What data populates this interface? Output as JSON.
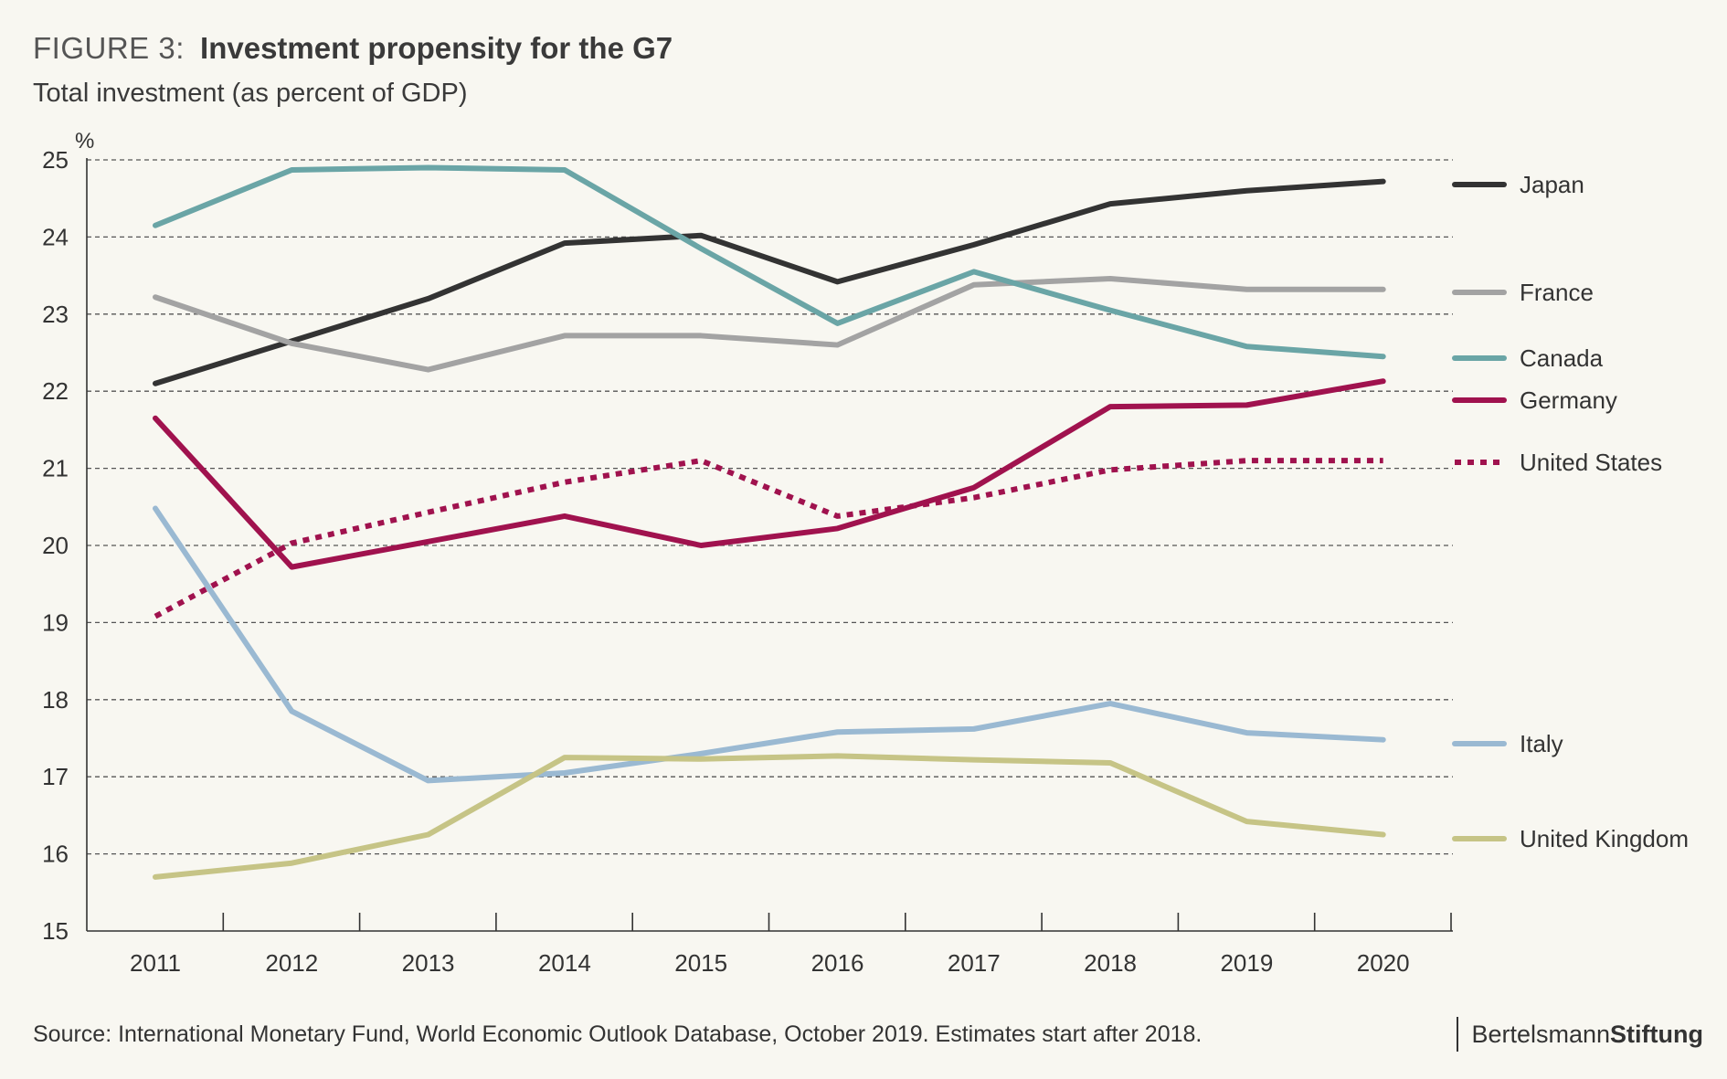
{
  "figure": {
    "label": "FIGURE 3:",
    "title": "Investment propensity for the G7",
    "subtitle": "Total investment (as percent of GDP)"
  },
  "footer": {
    "source": "Source: International Monetary Fund, World Economic Outlook Database, October 2019. Estimates start after 2018."
  },
  "brand": {
    "part1": "Bertelsmann",
    "part2": "Stiftung"
  },
  "chart_data": {
    "type": "line",
    "title": "Investment propensity for the G7",
    "subtitle": "Total investment (as percent of GDP)",
    "ylabel": "%",
    "xlabel": "",
    "ylim": [
      15,
      25
    ],
    "yticks": [
      15,
      16,
      17,
      18,
      19,
      20,
      21,
      22,
      23,
      24,
      25
    ],
    "categories": [
      "2011",
      "2012",
      "2013",
      "2014",
      "2015",
      "2016",
      "2017",
      "2018",
      "2019",
      "2020"
    ],
    "grid": "horizontal dashed",
    "legend_position": "right, at line ends",
    "series": [
      {
        "name": "Japan",
        "color": "#333333",
        "dash": false,
        "values": [
          22.1,
          22.65,
          23.2,
          23.92,
          24.02,
          23.42,
          23.9,
          24.43,
          24.6,
          24.72
        ]
      },
      {
        "name": "France",
        "color": "#a3a3a3",
        "dash": false,
        "values": [
          23.22,
          22.62,
          22.28,
          22.72,
          22.72,
          22.6,
          23.38,
          23.46,
          23.32,
          23.32
        ]
      },
      {
        "name": "Canada",
        "color": "#6aa5a6",
        "dash": false,
        "values": [
          24.15,
          24.87,
          24.9,
          24.87,
          23.85,
          22.88,
          23.55,
          23.05,
          22.58,
          22.45
        ]
      },
      {
        "name": "Germany",
        "color": "#a0124e",
        "dash": false,
        "values": [
          21.65,
          19.72,
          20.05,
          20.38,
          20.0,
          20.22,
          20.75,
          21.8,
          21.82,
          22.13
        ]
      },
      {
        "name": "United States",
        "color": "#a0124e",
        "dash": true,
        "values": [
          19.08,
          20.03,
          20.43,
          20.82,
          21.1,
          20.38,
          20.62,
          20.98,
          21.1,
          21.1
        ]
      },
      {
        "name": "Italy",
        "color": "#9ab9d2",
        "dash": false,
        "values": [
          20.48,
          17.85,
          16.95,
          17.05,
          17.3,
          17.58,
          17.62,
          17.95,
          17.57,
          17.48
        ]
      },
      {
        "name": "United Kingdom",
        "color": "#c6c486",
        "dash": false,
        "values": [
          15.7,
          15.88,
          16.25,
          17.25,
          17.23,
          17.27,
          17.22,
          17.18,
          16.42,
          16.25
        ]
      }
    ]
  }
}
